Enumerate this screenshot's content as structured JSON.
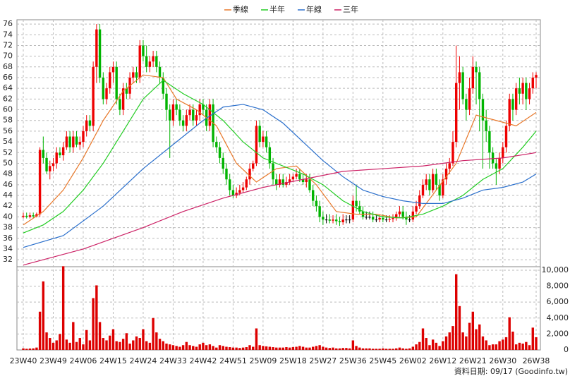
{
  "chart_data": {
    "type": "candlestick",
    "categories": [
      "23W40",
      null,
      null,
      null,
      null,
      null,
      null,
      null,
      null,
      "23W49",
      null,
      null,
      null,
      null,
      null,
      null,
      null,
      null,
      "24W06",
      null,
      null,
      null,
      null,
      null,
      null,
      null,
      null,
      "24W15",
      null,
      null,
      null,
      null,
      null,
      null,
      null,
      null,
      "24W24",
      null,
      null,
      null,
      null,
      null,
      null,
      null,
      null,
      "24W33",
      null,
      null,
      null,
      null,
      null,
      null,
      null,
      null,
      "24W42",
      null,
      null,
      null,
      null,
      null,
      null,
      null,
      null,
      "24W51",
      null,
      null,
      null,
      null,
      null,
      null,
      null,
      null,
      "25W09",
      null,
      null,
      null,
      null,
      null,
      null,
      null,
      null,
      "25W18",
      null,
      null,
      null,
      null,
      null,
      null,
      null,
      null,
      "25W27",
      null,
      null,
      null,
      null,
      null,
      null,
      null,
      null,
      "25W36",
      null,
      null,
      null,
      null,
      null,
      null,
      null,
      null,
      "25W45",
      null,
      null,
      null,
      null,
      null,
      null,
      null,
      null,
      "26W02",
      null,
      null,
      null,
      null,
      null,
      null,
      null,
      null,
      "26W12",
      null,
      null,
      null,
      null,
      null,
      null,
      null,
      null,
      "26W21",
      null,
      null,
      null,
      null,
      null,
      null,
      null,
      null,
      "26W30",
      null,
      null,
      null,
      null,
      null,
      null,
      null,
      null,
      null,
      "26W38"
    ],
    "open": [
      40,
      40.2,
      40,
      40.3,
      40.1,
      40.5,
      52.5,
      51,
      48.5,
      49.5,
      50,
      52,
      51.5,
      53,
      55,
      53,
      55,
      53.5,
      54,
      56,
      58,
      57,
      68,
      75,
      66,
      62,
      64,
      67,
      68,
      62,
      60,
      64,
      63,
      66,
      67,
      66,
      72,
      70,
      68,
      69,
      70,
      68,
      66,
      63,
      60,
      58,
      61,
      60,
      58,
      57,
      59,
      60,
      58,
      59,
      61,
      60,
      57,
      61,
      54,
      53,
      51,
      49,
      47,
      45,
      44,
      44.5,
      45,
      45.5,
      47,
      49,
      50,
      57,
      54,
      55,
      53,
      50,
      47,
      46,
      47,
      46,
      46.5,
      47,
      47.5,
      48,
      47,
      46.5,
      47,
      45,
      43,
      42,
      40,
      39.5,
      39.5,
      39.3,
      39.5,
      39.2,
      39,
      39.5,
      39.5,
      39.5,
      43,
      42,
      41,
      40,
      40,
      40,
      39.5,
      39.5,
      39.8,
      39.5,
      39.5,
      39.6,
      39.8,
      40.5,
      41,
      40,
      39.5,
      39.5,
      41,
      42,
      44,
      46,
      47,
      45,
      48,
      46,
      44,
      47,
      49,
      50,
      54,
      65,
      67,
      62,
      60,
      64,
      68,
      67,
      62,
      58,
      56,
      52,
      50,
      49,
      51,
      53,
      57,
      62,
      60,
      64,
      63,
      65,
      62,
      64,
      66
    ],
    "high": [
      40.8,
      40.8,
      40.8,
      40.8,
      40.8,
      53,
      55,
      52,
      50.5,
      51,
      53,
      53,
      54,
      56,
      56,
      56,
      56,
      55,
      57,
      59,
      59,
      69,
      76,
      76,
      67,
      65,
      68,
      69,
      69,
      63,
      65,
      65,
      67,
      68,
      68,
      73,
      73,
      72,
      70,
      71,
      71,
      69,
      67,
      64,
      61,
      62,
      62,
      61,
      59,
      60,
      61,
      61,
      60,
      62,
      62,
      61,
      62,
      62,
      55,
      54,
      52,
      50,
      48,
      46,
      45.5,
      46,
      46.5,
      47.5,
      50,
      50.5,
      58,
      58,
      56,
      56,
      54,
      51,
      48,
      48,
      48,
      47.5,
      48,
      48,
      49,
      49,
      48,
      48,
      48,
      46,
      44,
      43,
      41,
      40.5,
      40.5,
      40.3,
      40.5,
      40,
      40.5,
      40.3,
      40.3,
      44,
      46,
      43,
      42,
      41,
      41,
      41,
      40.3,
      40.3,
      40.5,
      40.3,
      40.3,
      40.5,
      41,
      42,
      42,
      41,
      40.3,
      42,
      43,
      45,
      47,
      48,
      48,
      49,
      49,
      47,
      48,
      50,
      51,
      56,
      72,
      70,
      68,
      63,
      66,
      70,
      69,
      68,
      63,
      60,
      57,
      53,
      51,
      52,
      54,
      58,
      63,
      63,
      65,
      66,
      66,
      66,
      65,
      67,
      67
    ],
    "low": [
      39.7,
      39.7,
      39.7,
      39.7,
      39.9,
      40,
      50,
      48,
      47,
      48.5,
      49,
      51,
      50.5,
      52.5,
      52,
      52,
      53,
      52.5,
      53,
      55,
      56,
      56,
      65,
      65,
      61,
      61,
      63,
      65,
      61,
      59,
      59,
      62,
      62,
      65,
      65,
      65,
      69,
      67,
      67,
      68,
      67,
      65,
      62,
      58,
      51,
      57,
      59,
      57,
      56,
      56,
      58,
      57,
      57,
      58,
      59,
      56,
      56,
      53,
      52,
      50,
      48,
      46,
      44,
      43.5,
      43.5,
      44,
      44.5,
      45,
      46,
      48.5,
      49.5,
      53,
      53,
      52,
      49,
      46,
      45,
      45.5,
      45.5,
      45.5,
      46,
      46.5,
      47,
      46.5,
      46,
      45.5,
      44.5,
      42,
      41,
      39,
      38.5,
      38.8,
      38.8,
      38.8,
      38.5,
      38.3,
      38.5,
      38.8,
      38.8,
      39,
      41,
      40.5,
      39.5,
      39.5,
      39.5,
      39,
      39,
      39,
      39,
      39,
      39,
      39,
      39.3,
      40,
      39.5,
      38.5,
      39,
      39,
      40.5,
      41.5,
      43.5,
      45,
      44,
      44.5,
      45,
      43,
      43.5,
      46,
      48,
      49.5,
      53,
      60,
      61,
      58,
      59,
      63,
      61,
      56,
      49,
      54,
      49,
      49,
      46,
      48,
      50,
      52,
      56,
      58,
      59,
      61,
      61,
      60,
      61,
      63,
      64
    ],
    "close": [
      40.2,
      40,
      40.3,
      40.1,
      40.5,
      52.5,
      51,
      48.5,
      49.5,
      50,
      52,
      51.5,
      53,
      55,
      53,
      55,
      53.5,
      54,
      56,
      58,
      57,
      68,
      75,
      66,
      62,
      64,
      67,
      68,
      62,
      60,
      64,
      63,
      66,
      67,
      66,
      72,
      70,
      68,
      69,
      70,
      68,
      66,
      63,
      60,
      58,
      61,
      60,
      58,
      57,
      59,
      60,
      58,
      59,
      61,
      60,
      57,
      61,
      54,
      53,
      51,
      49,
      47,
      45,
      44,
      44.5,
      45,
      45.5,
      47,
      49,
      50,
      57,
      54,
      55,
      53,
      50,
      47,
      46,
      47,
      46,
      46.5,
      47,
      47.5,
      48,
      47,
      46.5,
      47,
      45,
      43,
      42,
      40,
      39.5,
      39.5,
      39.3,
      39.5,
      39.2,
      39,
      39.5,
      39.5,
      39.5,
      43,
      42,
      41,
      40,
      40,
      40,
      39.5,
      39.5,
      39.8,
      39.5,
      39.5,
      39.6,
      39.8,
      40.5,
      41,
      40,
      39.5,
      39.5,
      41,
      42,
      44,
      46,
      47,
      45,
      48,
      46,
      44,
      47,
      49,
      50,
      54,
      65,
      67,
      62,
      60,
      64,
      68,
      67,
      62,
      58,
      56,
      52,
      50,
      49,
      51,
      53,
      57,
      62,
      60,
      64,
      63,
      65,
      62,
      64,
      66,
      66.5
    ],
    "volume": [
      200,
      150,
      180,
      200,
      300,
      4800,
      8600,
      2200,
      1500,
      900,
      1200,
      2000,
      10500,
      1300,
      900,
      3500,
      1000,
      1500,
      700,
      2500,
      1200,
      6500,
      8100,
      3500,
      1500,
      1200,
      1800,
      2600,
      1100,
      1000,
      1400,
      2100,
      800,
      1200,
      1700,
      1500,
      2600,
      1100,
      900,
      4000,
      2200,
      1400,
      1100,
      800,
      700,
      600,
      500,
      400,
      600,
      1000,
      600,
      500,
      400,
      700,
      900,
      600,
      700,
      500,
      300,
      600,
      500,
      400,
      350,
      300,
      300,
      250,
      300,
      350,
      600,
      400,
      2700,
      600,
      500,
      450,
      400,
      350,
      300,
      300,
      300,
      350,
      300,
      350,
      400,
      500,
      400,
      300,
      300,
      400,
      500,
      600,
      400,
      300,
      250,
      300,
      200,
      200,
      250,
      250,
      200,
      1200,
      500,
      300,
      200,
      200,
      200,
      150,
      150,
      150,
      200,
      150,
      150,
      150,
      200,
      300,
      200,
      150,
      200,
      400,
      700,
      1000,
      2700,
      1500,
      600,
      1300,
      900,
      500,
      1100,
      1700,
      2200,
      3000,
      9500,
      5500,
      2200,
      1700,
      3400,
      4800,
      2600,
      3200,
      1700,
      1200,
      600,
      700,
      700,
      1100,
      1300,
      1600,
      4100,
      2300,
      700,
      900,
      800,
      1000,
      600,
      2800,
      1600
    ],
    "up_color": "#ee0000",
    "down_color": "#00b400",
    "flat_color": "#000000",
    "volume_color": "#dd0000",
    "series": [
      {
        "name": "季線",
        "color": "#e8782a",
        "x": [
          0,
          6,
          12,
          18,
          24,
          30,
          36,
          42,
          46,
          52,
          58,
          64,
          70,
          76,
          82,
          88,
          94,
          100,
          106,
          112,
          118,
          124,
          130,
          136,
          142,
          148,
          154
        ],
        "values": [
          38.5,
          41,
          45,
          51,
          58,
          63.5,
          66.5,
          66,
          62,
          60,
          57,
          50,
          46.5,
          49,
          49.5,
          46,
          41,
          40.5,
          40.5,
          39.8,
          40,
          45,
          50,
          59,
          58,
          57,
          59.5
        ]
      },
      {
        "name": "半年",
        "color": "#22cc22",
        "x": [
          0,
          6,
          12,
          18,
          24,
          30,
          36,
          42,
          48,
          54,
          60,
          66,
          72,
          78,
          84,
          90,
          96,
          102,
          108,
          114,
          120,
          126,
          132,
          138,
          144,
          150,
          154
        ],
        "values": [
          37,
          38.5,
          41,
          45,
          50,
          56,
          62,
          65.5,
          63,
          61,
          58,
          54,
          51,
          49.5,
          48,
          46,
          43,
          41,
          40,
          39.8,
          40.5,
          42,
          44,
          47,
          49,
          53,
          56
        ]
      },
      {
        "name": "年線",
        "color": "#2a6fcc",
        "x": [
          0,
          12,
          24,
          36,
          48,
          54,
          60,
          66,
          72,
          78,
          84,
          90,
          96,
          102,
          108,
          114,
          120,
          126,
          132,
          138,
          144,
          150,
          154
        ],
        "values": [
          34.3,
          36.5,
          42,
          49,
          55,
          58,
          60.5,
          61,
          60,
          57.5,
          54,
          50.5,
          47.5,
          45,
          43.8,
          43,
          42.5,
          42.5,
          43.5,
          45,
          45.5,
          46.5,
          48
        ]
      },
      {
        "name": "三年",
        "color": "#cc2266",
        "x": [
          0,
          18,
          36,
          48,
          60,
          72,
          84,
          96,
          108,
          120,
          132,
          144,
          154
        ],
        "values": [
          31,
          34,
          38,
          41,
          43.5,
          45.5,
          47,
          48.5,
          49,
          49.5,
          50.5,
          51,
          52
        ]
      }
    ],
    "ylim": [
      30.7,
      76.8
    ],
    "yticks": [
      32,
      34,
      36,
      38,
      40,
      42,
      44,
      46,
      48,
      50,
      52,
      54,
      56,
      58,
      60,
      62,
      64,
      66,
      68,
      70,
      72,
      74,
      76
    ],
    "y2lim": [
      0,
      10440
    ],
    "y2ticks": [
      0,
      {
        "value": 2000,
        "label": "2,000"
      },
      {
        "value": 4000,
        "label": "4,000"
      },
      {
        "value": 6000,
        "label": "6,000"
      },
      {
        "value": 8000,
        "label": "8,000"
      },
      {
        "value": 10000,
        "label": "10,000"
      }
    ],
    "grid": true,
    "note": "資料日期: 09/17  (Goodinfo.tw)"
  }
}
